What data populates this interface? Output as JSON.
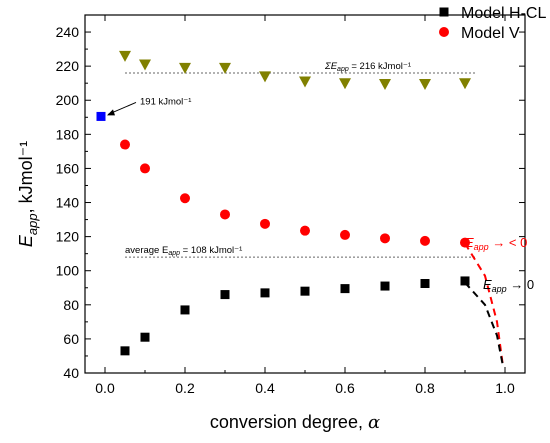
{
  "chart_data": {
    "type": "scatter",
    "xlabel": "conversion degree, α",
    "ylabel": "E_app, kJmol⁻¹",
    "xlim": [
      -0.05,
      1.05
    ],
    "ylim": [
      40,
      250
    ],
    "x_ticks": [
      0.0,
      0.2,
      0.4,
      0.6,
      0.8,
      1.0
    ],
    "y_ticks": [
      40,
      60,
      80,
      100,
      120,
      140,
      160,
      180,
      200,
      220,
      240
    ],
    "legend_position": "top-right",
    "series": [
      {
        "name": "Model H-CL",
        "marker": "square",
        "color": "#000000",
        "x": [
          0.05,
          0.1,
          0.2,
          0.3,
          0.4,
          0.5,
          0.6,
          0.7,
          0.8,
          0.9
        ],
        "y": [
          53,
          61,
          77,
          86,
          87,
          88,
          89.5,
          91,
          92.5,
          94
        ]
      },
      {
        "name": "Model V",
        "marker": "circle",
        "color": "#ff0000",
        "x": [
          0.05,
          0.1,
          0.2,
          0.3,
          0.4,
          0.5,
          0.6,
          0.7,
          0.8,
          0.9
        ],
        "y": [
          174,
          160,
          142.5,
          133,
          127.5,
          123.5,
          121,
          119,
          117.5,
          116.5
        ]
      },
      {
        "name": "",
        "marker": "triangle-down",
        "color": "#808000",
        "x": [
          0.05,
          0.1,
          0.2,
          0.3,
          0.4,
          0.5,
          0.6,
          0.7,
          0.8,
          0.9
        ],
        "y": [
          226,
          221,
          219,
          219,
          214,
          211,
          210,
          209.5,
          209.5,
          210
        ]
      },
      {
        "name": "",
        "marker": "square",
        "color": "#0000ff",
        "x": [
          -0.01
        ],
        "y": [
          190.5
        ]
      }
    ],
    "dashed_curves": [
      {
        "color": "#ff0000",
        "x": [
          0.9,
          0.95,
          0.98,
          0.995
        ],
        "y": [
          116,
          97,
          70,
          44
        ]
      },
      {
        "color": "#000000",
        "x": [
          0.9,
          0.95,
          0.98,
          0.995
        ],
        "y": [
          93,
          80,
          62,
          44
        ]
      }
    ],
    "reference_lines": [
      {
        "y": 216,
        "x": [
          0.05,
          0.9
        ],
        "label_main": "ΣE",
        "label_sub": "app",
        "label_rest": " = 216 kJmol⁻¹"
      },
      {
        "y": 108,
        "x": [
          0.05,
          0.9
        ],
        "label_main": "average E",
        "label_sub": "app",
        "label_rest": " = 108 kJmol⁻¹"
      }
    ],
    "annotations": {
      "blue_point_label": "191 kJmol⁻¹",
      "red_end_label": {
        "main": "E",
        "sub": "app",
        "rest": " → < 0"
      },
      "black_end_label": {
        "main": "E",
        "sub": "app",
        "rest": " → 0"
      }
    }
  }
}
